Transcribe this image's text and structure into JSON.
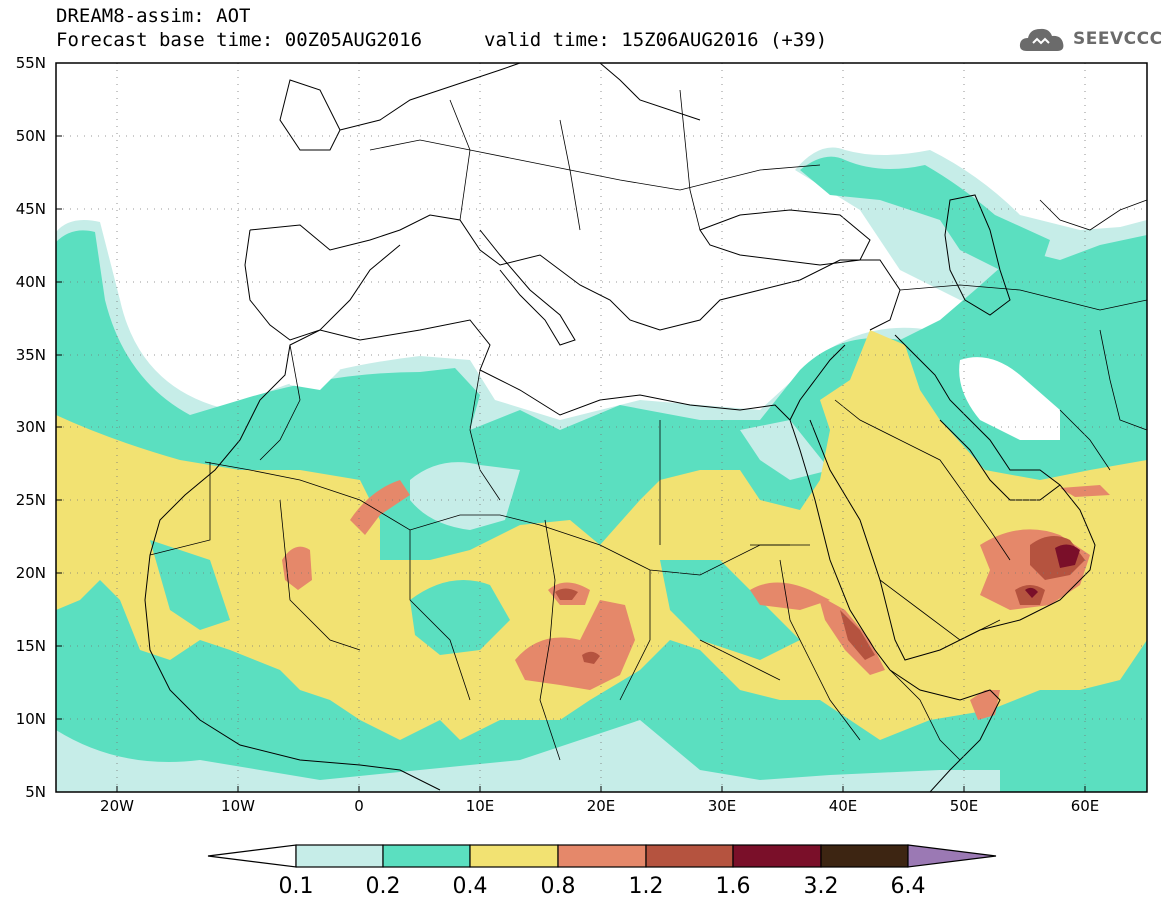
{
  "header": {
    "title_line1": "DREAM8-assim: AOT",
    "title_line2": "Forecast base time: 00Z05AUG2016",
    "valid_time": "valid time: 15Z06AUG2016 (+39)",
    "logo_text": "SEEVCCC"
  },
  "map": {
    "projection": "lat-lon",
    "lon_range": [
      -25,
      65
    ],
    "lat_range": [
      5,
      55
    ],
    "lat_labels": [
      "55N",
      "50N",
      "45N",
      "40N",
      "35N",
      "30N",
      "25N",
      "20N",
      "15N",
      "10N",
      "5N"
    ],
    "lon_labels": [
      "20W",
      "10W",
      "0",
      "10E",
      "20E",
      "30E",
      "40E",
      "50E",
      "60E"
    ],
    "grid": "dotted"
  },
  "colorbar": {
    "labels": [
      "0.1",
      "0.2",
      "0.4",
      "0.8",
      "1.2",
      "1.6",
      "3.2",
      "6.4"
    ],
    "colors": [
      "#c6ede8",
      "#5bdfc0",
      "#f2e272",
      "#e5886a",
      "#b5533f",
      "#7a0f29",
      "#3d2512",
      "#9b79b4"
    ],
    "low_end_color": "#ffffff"
  }
}
